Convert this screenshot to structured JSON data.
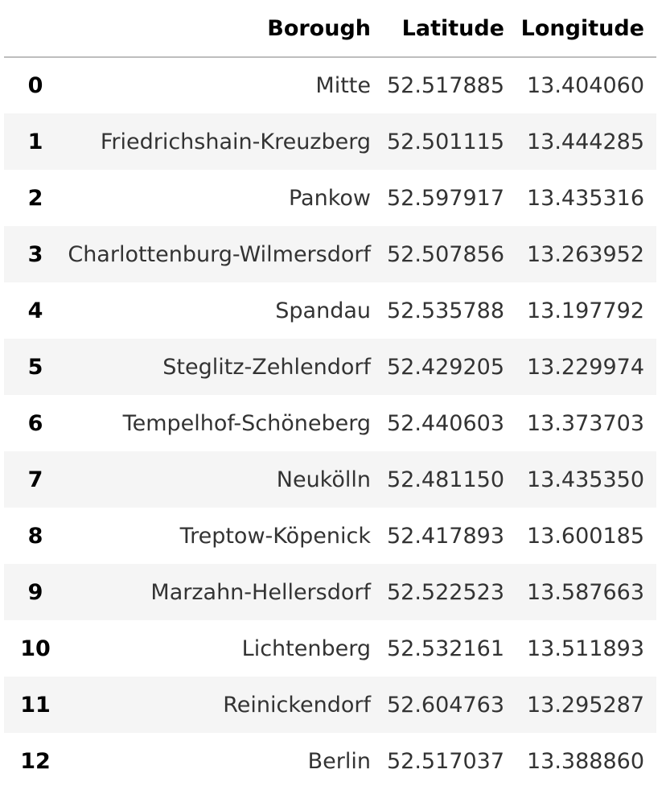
{
  "table": {
    "columns": [
      "",
      "Borough",
      "Latitude",
      "Longitude"
    ],
    "rows": [
      {
        "index": "0",
        "borough": "Mitte",
        "latitude": "52.517885",
        "longitude": "13.404060"
      },
      {
        "index": "1",
        "borough": "Friedrichshain-Kreuzberg",
        "latitude": "52.501115",
        "longitude": "13.444285"
      },
      {
        "index": "2",
        "borough": "Pankow",
        "latitude": "52.597917",
        "longitude": "13.435316"
      },
      {
        "index": "3",
        "borough": "Charlottenburg-Wilmersdorf",
        "latitude": "52.507856",
        "longitude": "13.263952"
      },
      {
        "index": "4",
        "borough": "Spandau",
        "latitude": "52.535788",
        "longitude": "13.197792"
      },
      {
        "index": "5",
        "borough": "Steglitz-Zehlendorf",
        "latitude": "52.429205",
        "longitude": "13.229974"
      },
      {
        "index": "6",
        "borough": "Tempelhof-Schöneberg",
        "latitude": "52.440603",
        "longitude": "13.373703"
      },
      {
        "index": "7",
        "borough": "Neukölln",
        "latitude": "52.481150",
        "longitude": "13.435350"
      },
      {
        "index": "8",
        "borough": "Treptow-Köpenick",
        "latitude": "52.417893",
        "longitude": "13.600185"
      },
      {
        "index": "9",
        "borough": "Marzahn-Hellersdorf",
        "latitude": "52.522523",
        "longitude": "13.587663"
      },
      {
        "index": "10",
        "borough": "Lichtenberg",
        "latitude": "52.532161",
        "longitude": "13.511893"
      },
      {
        "index": "11",
        "borough": "Reinickendorf",
        "latitude": "52.604763",
        "longitude": "13.295287"
      },
      {
        "index": "12",
        "borough": "Berlin",
        "latitude": "52.517037",
        "longitude": "13.388860"
      }
    ]
  },
  "colors": {
    "stripe": "#f5f5f5",
    "header_rule": "#bdbdbd",
    "text": "#000000"
  }
}
